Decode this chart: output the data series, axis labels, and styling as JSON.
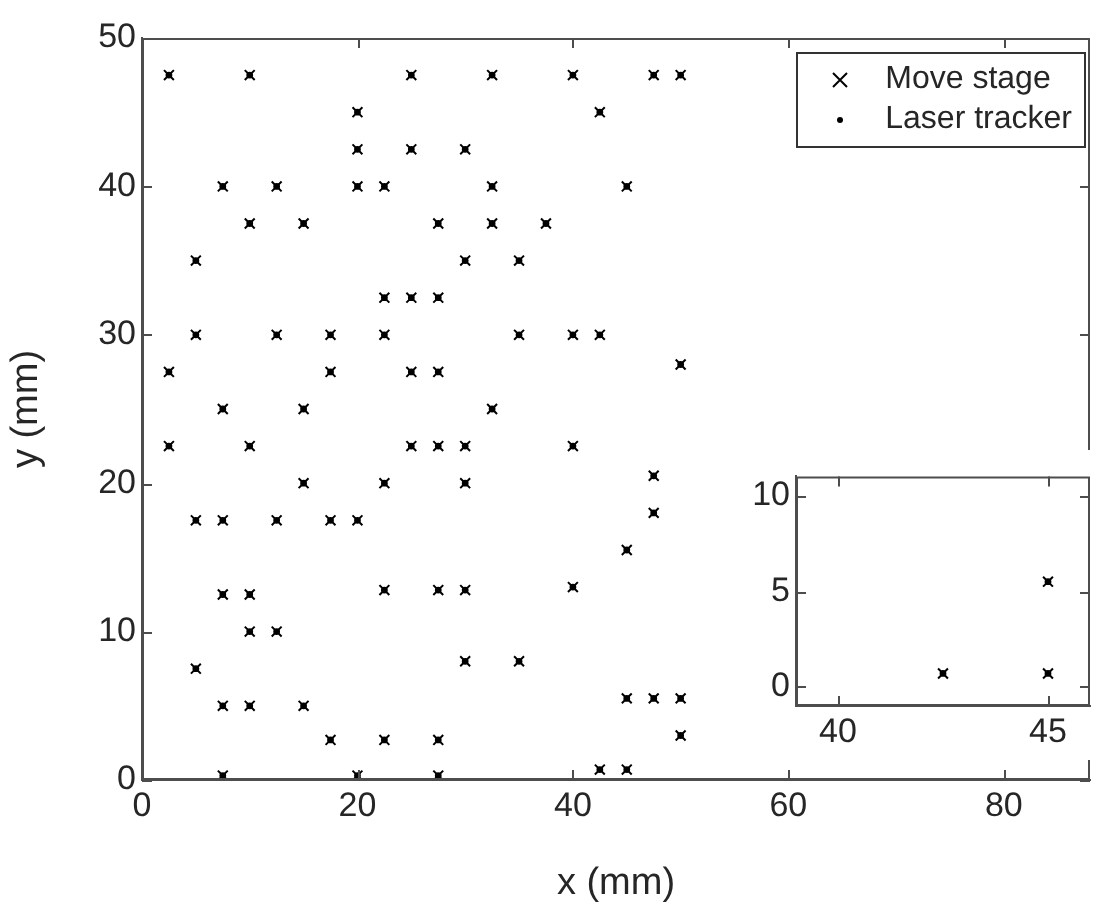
{
  "chart_data": [
    {
      "type": "scatter",
      "xlabel": "x (mm)",
      "ylabel": "y (mm)",
      "xlim": [
        0,
        88
      ],
      "ylim": [
        0,
        50
      ],
      "xticks": [
        0,
        20,
        40,
        60,
        80
      ],
      "yticks": [
        0,
        10,
        20,
        30,
        40,
        50
      ],
      "grid": false,
      "legend": "top right",
      "series": [
        {
          "name": "Move stage",
          "color": "#000000",
          "marker": "cross",
          "x": [
            2.5,
            10,
            25,
            32.5,
            40,
            47.5,
            50,
            20,
            42.5,
            20,
            25,
            30,
            7.5,
            12.5,
            20,
            22.5,
            32.5,
            45,
            10,
            15,
            27.5,
            32.5,
            37.5,
            5,
            30,
            35,
            22.5,
            25,
            27.5,
            5,
            12.5,
            17.5,
            22.5,
            35,
            40,
            42.5,
            2.5,
            17.5,
            25,
            27.5,
            50,
            7.5,
            15,
            32.5,
            2.5,
            10,
            25,
            27.5,
            30,
            40,
            15,
            22.5,
            30,
            47.5,
            5,
            7.5,
            12.5,
            17.5,
            20,
            47.5,
            45,
            7.5,
            10,
            22.5,
            27.5,
            30,
            40,
            10,
            12.5,
            5,
            30,
            35,
            7.5,
            10,
            15,
            45,
            47.5,
            50,
            17.5,
            22.5,
            27.5,
            50,
            7.5,
            20,
            27.5,
            42.5,
            45
          ],
          "values": [
            47.5,
            47.5,
            47.5,
            47.5,
            47.5,
            47.5,
            47.5,
            45,
            45,
            42.5,
            42.5,
            42.5,
            40,
            40,
            40,
            40,
            40,
            40,
            37.5,
            37.5,
            37.5,
            37.5,
            37.5,
            35,
            35,
            35,
            32.5,
            32.5,
            32.5,
            30,
            30,
            30,
            30,
            30,
            30,
            30,
            27.5,
            27.5,
            27.5,
            27.5,
            28,
            25,
            25,
            25,
            22.5,
            22.5,
            22.5,
            22.5,
            22.5,
            22.5,
            20,
            20,
            20,
            20.5,
            17.5,
            17.5,
            17.5,
            17.5,
            17.5,
            18,
            15.5,
            12.5,
            12.5,
            12.8,
            12.8,
            12.8,
            13,
            10,
            10,
            7.5,
            8,
            8,
            5,
            5,
            5,
            5.5,
            5.5,
            5.5,
            2.7,
            2.7,
            2.7,
            3,
            0.3,
            0.3,
            0.3,
            0.7,
            0.7
          ]
        },
        {
          "name": "Laser tracker",
          "color": "#000000",
          "marker": "circle",
          "x": [
            2.5,
            10,
            25,
            32.5,
            40,
            47.5,
            50,
            20,
            42.5,
            20,
            25,
            30,
            7.5,
            12.5,
            20,
            22.5,
            32.5,
            45,
            10,
            15,
            27.5,
            32.5,
            37.5,
            5,
            30,
            35,
            22.5,
            25,
            27.5,
            5,
            12.5,
            17.5,
            22.5,
            35,
            40,
            42.5,
            2.5,
            17.5,
            25,
            27.5,
            50,
            7.5,
            15,
            32.5,
            2.5,
            10,
            25,
            27.5,
            30,
            40,
            15,
            22.5,
            30,
            47.5,
            5,
            7.5,
            12.5,
            17.5,
            20,
            47.5,
            45,
            7.5,
            10,
            22.5,
            27.5,
            30,
            40,
            10,
            12.5,
            5,
            30,
            35,
            7.5,
            10,
            15,
            45,
            47.5,
            50,
            17.5,
            22.5,
            27.5,
            50,
            7.5,
            20,
            27.5,
            42.5,
            45
          ],
          "values": [
            47.5,
            47.5,
            47.5,
            47.5,
            47.5,
            47.5,
            47.5,
            45,
            45,
            42.5,
            42.5,
            42.5,
            40,
            40,
            40,
            40,
            40,
            40,
            37.5,
            37.5,
            37.5,
            37.5,
            37.5,
            35,
            35,
            35,
            32.5,
            32.5,
            32.5,
            30,
            30,
            30,
            30,
            30,
            30,
            30,
            27.5,
            27.5,
            27.5,
            27.5,
            28,
            25,
            25,
            25,
            22.5,
            22.5,
            22.5,
            22.5,
            22.5,
            22.5,
            20,
            20,
            20,
            20.5,
            17.5,
            17.5,
            17.5,
            17.5,
            17.5,
            18,
            15.5,
            12.5,
            12.5,
            12.8,
            12.8,
            12.8,
            13,
            10,
            10,
            7.5,
            8,
            8,
            5,
            5,
            5,
            5.5,
            5.5,
            5.5,
            2.7,
            2.7,
            2.7,
            3,
            0.3,
            0.3,
            0.3,
            0.7,
            0.7
          ]
        }
      ]
    },
    {
      "type": "scatter",
      "xlim": [
        39,
        46
      ],
      "ylim": [
        -1,
        11
      ],
      "xticks": [
        40,
        45
      ],
      "yticks": [
        0,
        5,
        10
      ],
      "grid": false,
      "legend": false,
      "series": [
        {
          "color": "#000000",
          "marker": "cross",
          "x": [
            42.5,
            45,
            45
          ],
          "values": [
            0.7,
            0.7,
            5.5
          ]
        },
        {
          "color": "#000000",
          "marker": "circle",
          "x": [
            42.5,
            45,
            45
          ],
          "values": [
            0.7,
            0.7,
            5.5
          ]
        }
      ]
    }
  ]
}
